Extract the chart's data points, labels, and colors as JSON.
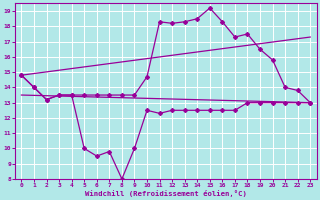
{
  "xlabel": "Windchill (Refroidissement éolien,°C)",
  "bg_color": "#b2e8e8",
  "grid_color": "#c8e8e8",
  "line_color": "#990099",
  "xlim": [
    -0.5,
    23.5
  ],
  "ylim": [
    8,
    19.5
  ],
  "xticks": [
    0,
    1,
    2,
    3,
    4,
    5,
    6,
    7,
    8,
    9,
    10,
    11,
    12,
    13,
    14,
    15,
    16,
    17,
    18,
    19,
    20,
    21,
    22,
    23
  ],
  "yticks": [
    8,
    9,
    10,
    11,
    12,
    13,
    14,
    15,
    16,
    17,
    18,
    19
  ],
  "line1_x": [
    0,
    1,
    2,
    3,
    4,
    5,
    6,
    7,
    8,
    9,
    10,
    11,
    12,
    13,
    14,
    15,
    16,
    17,
    18,
    19,
    20,
    21,
    22,
    23
  ],
  "line1_y": [
    14.8,
    14.0,
    13.2,
    13.5,
    13.5,
    10.0,
    9.5,
    9.8,
    8.0,
    10.0,
    12.5,
    12.3,
    12.5,
    12.5,
    12.5,
    12.5,
    12.5,
    12.5,
    13.0,
    13.0,
    13.0,
    13.0,
    13.0,
    13.0
  ],
  "line2_x": [
    0,
    1,
    2,
    3,
    4,
    5,
    6,
    7,
    8,
    9,
    10,
    11,
    12,
    13,
    14,
    15,
    16,
    17,
    18,
    19,
    20,
    21,
    22,
    23
  ],
  "line2_y": [
    14.8,
    14.0,
    13.2,
    13.5,
    13.5,
    13.5,
    13.5,
    13.5,
    13.5,
    13.5,
    14.7,
    18.3,
    18.2,
    18.3,
    18.5,
    19.2,
    18.3,
    17.3,
    17.5,
    16.5,
    15.8,
    14.0,
    13.8,
    13.0
  ],
  "line3_x": [
    0,
    23
  ],
  "line3_y": [
    14.8,
    17.3
  ],
  "line4_x": [
    0,
    23
  ],
  "line4_y": [
    13.5,
    13.0
  ]
}
